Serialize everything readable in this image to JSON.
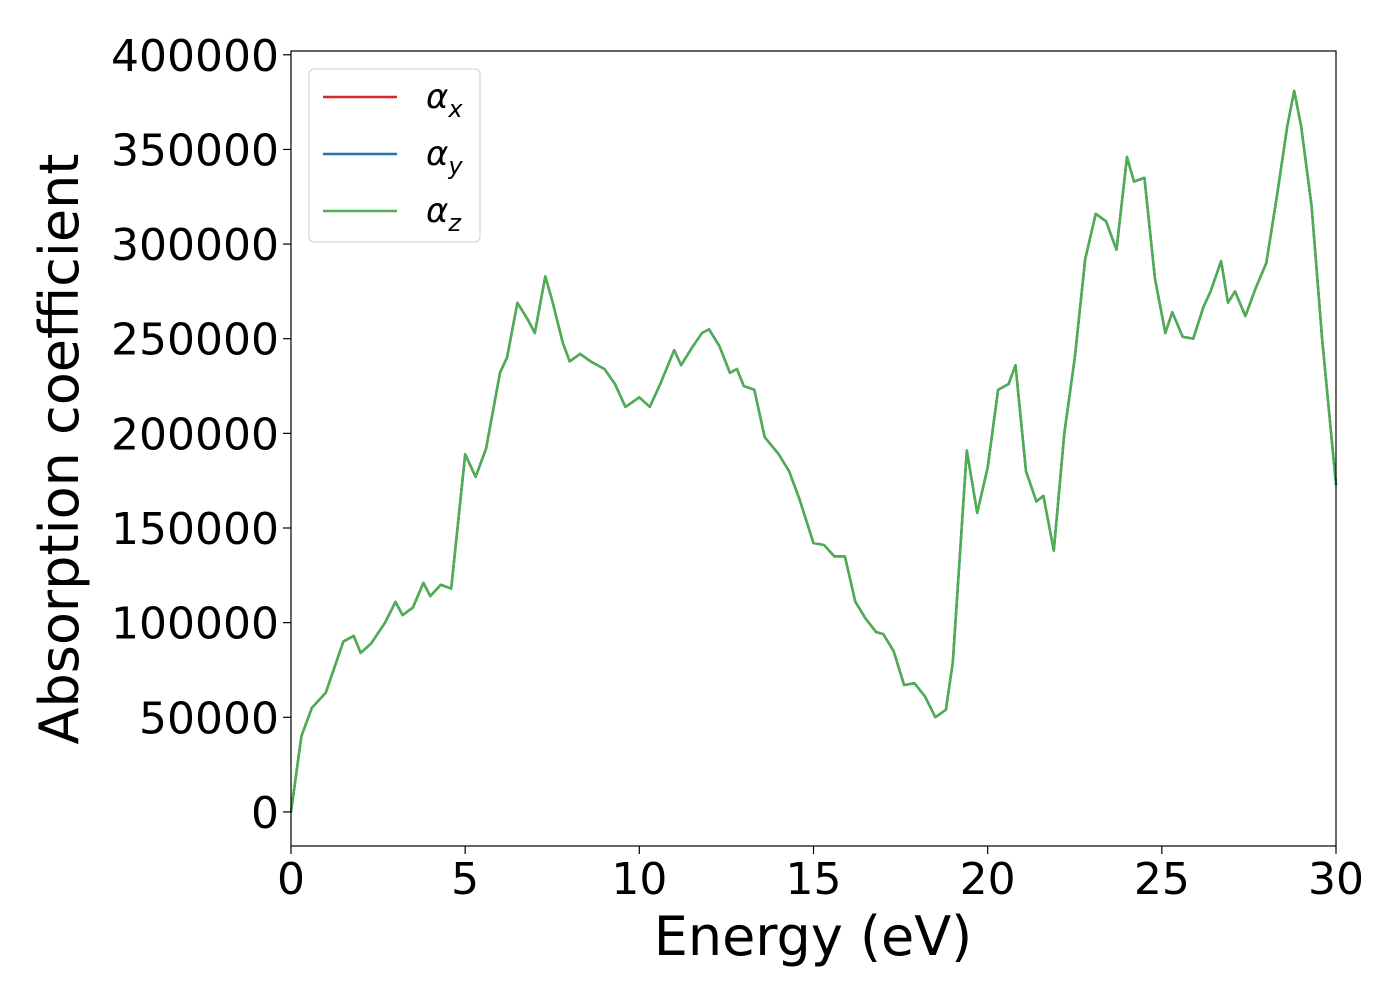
{
  "chart_data": {
    "type": "line",
    "title": "",
    "xlabel": "Energy (eV)",
    "ylabel": "Absorption coefficient",
    "xlim": [
      0,
      30
    ],
    "ylim": [
      -18000,
      402000
    ],
    "xticks": [
      0,
      5,
      10,
      15,
      20,
      25,
      30
    ],
    "xtick_labels": [
      "0",
      "5",
      "10",
      "15",
      "20",
      "25",
      "30"
    ],
    "yticks": [
      0,
      50000,
      100000,
      150000,
      200000,
      250000,
      300000,
      350000,
      400000
    ],
    "ytick_labels": [
      "0",
      "50000",
      "100000",
      "150000",
      "200000",
      "250000",
      "300000",
      "350000",
      "400000"
    ],
    "grid": false,
    "legend_position": "top-left",
    "colors": {
      "alpha_x": "#d62728",
      "alpha_y": "#1f77b4",
      "alpha_z": "#4caf50"
    },
    "x": [
      0,
      0.3,
      0.6,
      1.0,
      1.5,
      1.8,
      2.0,
      2.3,
      2.7,
      3.0,
      3.2,
      3.5,
      3.8,
      4.0,
      4.3,
      4.6,
      5.0,
      5.3,
      5.6,
      6.0,
      6.2,
      6.5,
      6.8,
      7.0,
      7.3,
      7.5,
      7.8,
      8.0,
      8.3,
      8.6,
      9.0,
      9.3,
      9.6,
      10.0,
      10.3,
      10.6,
      11.0,
      11.2,
      11.5,
      11.8,
      12.0,
      12.3,
      12.6,
      12.8,
      13.0,
      13.3,
      13.6,
      14.0,
      14.3,
      14.6,
      15.0,
      15.3,
      15.6,
      15.9,
      16.2,
      16.5,
      16.8,
      17.0,
      17.3,
      17.6,
      17.9,
      18.2,
      18.5,
      18.8,
      19.0,
      19.2,
      19.4,
      19.7,
      20.0,
      20.3,
      20.6,
      20.8,
      21.1,
      21.4,
      21.6,
      21.9,
      22.2,
      22.5,
      22.8,
      23.1,
      23.4,
      23.7,
      24.0,
      24.2,
      24.5,
      24.8,
      25.1,
      25.3,
      25.6,
      25.9,
      26.2,
      26.4,
      26.7,
      26.9,
      27.1,
      27.4,
      27.7,
      28.0,
      28.3,
      28.6,
      28.8,
      29.0,
      29.3,
      29.6,
      30.0
    ],
    "series": [
      {
        "name": "αx",
        "color": "#d62728",
        "values": [
          0,
          40000,
          55000,
          63000,
          90000,
          93000,
          84000,
          89000,
          100000,
          111000,
          104000,
          108000,
          121000,
          114000,
          120000,
          118000,
          189000,
          177000,
          192000,
          232000,
          240000,
          269000,
          260000,
          253000,
          283000,
          270000,
          248000,
          238000,
          242000,
          238000,
          234000,
          226000,
          214000,
          219000,
          214000,
          226000,
          244000,
          236000,
          245000,
          253000,
          255000,
          246000,
          232000,
          234000,
          225000,
          223000,
          198000,
          189000,
          180000,
          165000,
          142000,
          141000,
          135000,
          135000,
          111000,
          102000,
          95000,
          94000,
          85000,
          67000,
          68000,
          61000,
          50000,
          54000,
          79000,
          135000,
          191000,
          158000,
          182000,
          223000,
          226000,
          236000,
          180000,
          164000,
          167000,
          138000,
          200000,
          240000,
          292000,
          316000,
          312000,
          297000,
          346000,
          333000,
          335000,
          282000,
          253000,
          264000,
          251000,
          250000,
          267000,
          275000,
          291000,
          269000,
          275000,
          262000,
          277000,
          290000,
          325000,
          362000,
          381000,
          362000,
          320000,
          250000,
          173000
        ]
      },
      {
        "name": "αy",
        "color": "#1f77b4",
        "values": [
          0,
          40000,
          55000,
          63000,
          90000,
          93000,
          84000,
          89000,
          100000,
          111000,
          104000,
          108000,
          121000,
          114000,
          120000,
          118000,
          189000,
          177000,
          192000,
          232000,
          240000,
          269000,
          260000,
          253000,
          283000,
          270000,
          248000,
          238000,
          242000,
          238000,
          234000,
          226000,
          214000,
          219000,
          214000,
          226000,
          244000,
          236000,
          245000,
          253000,
          255000,
          246000,
          232000,
          234000,
          225000,
          223000,
          198000,
          189000,
          180000,
          165000,
          142000,
          141000,
          135000,
          135000,
          111000,
          102000,
          95000,
          94000,
          85000,
          67000,
          68000,
          61000,
          50000,
          54000,
          79000,
          135000,
          191000,
          158000,
          182000,
          223000,
          226000,
          236000,
          180000,
          164000,
          167000,
          138000,
          200000,
          240000,
          292000,
          316000,
          312000,
          297000,
          346000,
          333000,
          335000,
          282000,
          253000,
          264000,
          251000,
          250000,
          267000,
          275000,
          291000,
          269000,
          275000,
          262000,
          277000,
          290000,
          325000,
          362000,
          381000,
          362000,
          320000,
          250000,
          173000
        ]
      },
      {
        "name": "αz",
        "color": "#4caf50",
        "values": [
          0,
          40000,
          55000,
          63000,
          90000,
          93000,
          84000,
          89000,
          100000,
          111000,
          104000,
          108000,
          121000,
          114000,
          120000,
          118000,
          189000,
          177000,
          192000,
          232000,
          240000,
          269000,
          260000,
          253000,
          283000,
          270000,
          248000,
          238000,
          242000,
          238000,
          234000,
          226000,
          214000,
          219000,
          214000,
          226000,
          244000,
          236000,
          245000,
          253000,
          255000,
          246000,
          232000,
          234000,
          225000,
          223000,
          198000,
          189000,
          180000,
          165000,
          142000,
          141000,
          135000,
          135000,
          111000,
          102000,
          95000,
          94000,
          85000,
          67000,
          68000,
          61000,
          50000,
          54000,
          79000,
          135000,
          191000,
          158000,
          182000,
          223000,
          226000,
          236000,
          180000,
          164000,
          167000,
          138000,
          200000,
          240000,
          292000,
          316000,
          312000,
          297000,
          346000,
          333000,
          335000,
          282000,
          253000,
          264000,
          251000,
          250000,
          267000,
          275000,
          291000,
          269000,
          275000,
          262000,
          277000,
          290000,
          325000,
          362000,
          381000,
          362000,
          320000,
          250000,
          173000
        ]
      }
    ],
    "legend": [
      {
        "symbol": "α",
        "sub": "x"
      },
      {
        "symbol": "α",
        "sub": "y"
      },
      {
        "symbol": "α",
        "sub": "z"
      }
    ]
  }
}
